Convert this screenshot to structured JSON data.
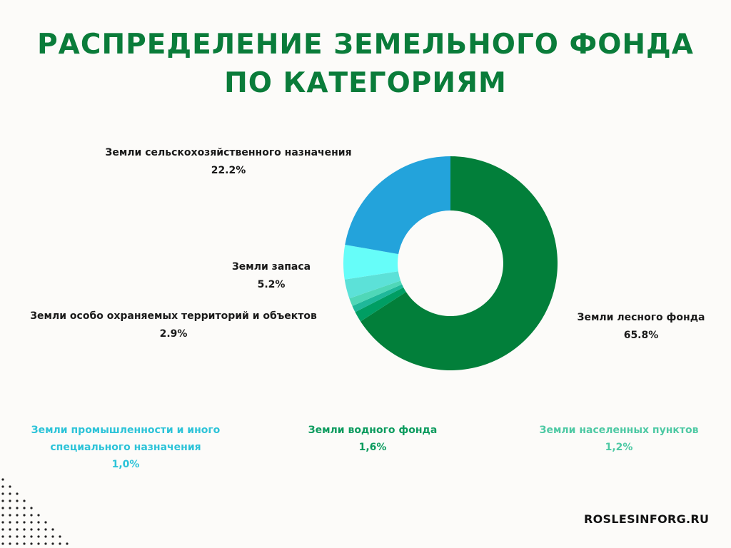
{
  "title": {
    "line1": "РАСПРЕДЕЛЕНИЕ ЗЕМЕЛЬНОГО ФОНДА",
    "line2": "ПО КАТЕГОРИЯМ",
    "color": "#0a7c3a"
  },
  "chart_data": {
    "type": "pie",
    "style": "donut",
    "categories": [
      "Земли лесного фонда",
      "Земли водного фонда",
      "Земли промышленности и иного специального назначения",
      "Земли населенных пунктов",
      "Земли особо охраняемых территорий и объектов",
      "Земли запаса",
      "Земли сельскохозяйственного назначения"
    ],
    "values": [
      65.8,
      1.6,
      1.0,
      1.2,
      2.9,
      5.2,
      22.2
    ],
    "colors": [
      "#027f3a",
      "#009e63",
      "#1fb89a",
      "#4fd7b8",
      "#5ce1d8",
      "#66fdf9",
      "#23a3db"
    ],
    "labels": {
      "forest": {
        "name": "Земли лесного фонда",
        "value": "65.8%"
      },
      "agri": {
        "name": "Земли сельскохозяйственного назначения",
        "value": "22.2%"
      },
      "reserve": {
        "name": "Земли запаса",
        "value": "5.2%"
      },
      "protected": {
        "name": "Земли особо охраняемых территорий и объектов",
        "value": "2.9%"
      },
      "industry": {
        "line1": "Земли промышленности и иного",
        "line2": "специального назначения",
        "value": "1,0%",
        "color": "#2cc3d8"
      },
      "water": {
        "name": "Земли водного фонда",
        "value": "1,6%",
        "color": "#0b9b5e"
      },
      "settlements": {
        "name": "Земли населенных пунктов",
        "value": "1,2%",
        "color": "#4ec9a4"
      }
    }
  },
  "footer": {
    "site": "ROSLESINFORG.RU"
  }
}
